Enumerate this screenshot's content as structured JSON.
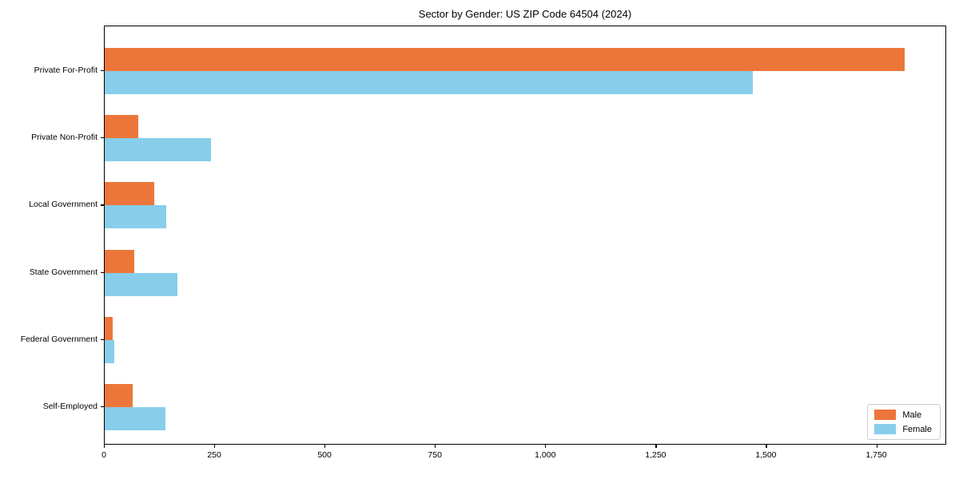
{
  "chart_data": {
    "type": "bar",
    "orientation": "horizontal",
    "title": "Sector by Gender: US ZIP Code 64504 (2024)",
    "categories": [
      "Private For-Profit",
      "Private Non-Profit",
      "Local Government",
      "State Government",
      "Federal Government",
      "Self-Employed"
    ],
    "series": [
      {
        "name": "Male",
        "color": "#EC763A",
        "values": [
          1812,
          76,
          112,
          67,
          18,
          63
        ]
      },
      {
        "name": "Female",
        "color": "#87CEEB",
        "values": [
          1468,
          240,
          139,
          165,
          22,
          137
        ]
      }
    ],
    "xlabel": "",
    "ylabel": "",
    "xlim": [
      0,
      1903
    ],
    "xticks": [
      0,
      250,
      500,
      750,
      1000,
      1250,
      1500,
      1750
    ],
    "xtick_labels": [
      "0",
      "250",
      "500",
      "750",
      "1,000",
      "1,250",
      "1,500",
      "1,750"
    ],
    "legend_position": "lower right",
    "grid": false
  }
}
